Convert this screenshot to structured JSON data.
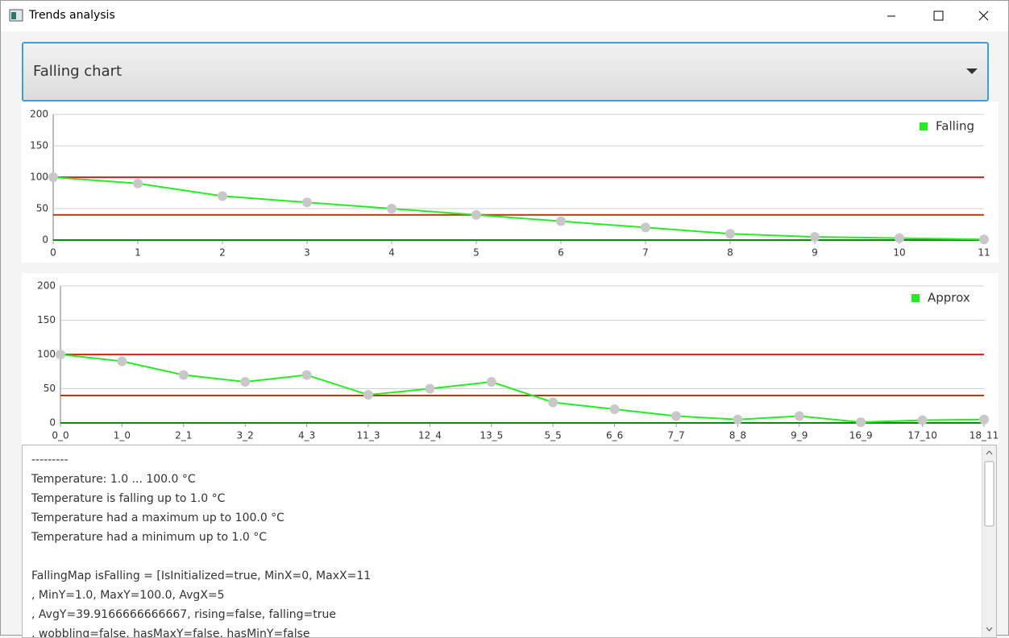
{
  "window": {
    "title": "Trends analysis"
  },
  "dropdown": {
    "selected": "Falling chart"
  },
  "chart_data": [
    {
      "type": "line",
      "x": [
        0,
        1,
        2,
        3,
        4,
        5,
        6,
        7,
        8,
        9,
        10,
        11
      ],
      "series": [
        {
          "name": "Falling",
          "color": "#22ee22",
          "values": [
            100,
            90,
            70,
            60,
            50,
            40,
            30,
            20,
            10,
            5,
            3,
            1
          ]
        }
      ],
      "marker_color": "#c8c8c8",
      "xlim": [
        0,
        11
      ],
      "xticks": [
        0,
        1,
        2,
        3,
        4,
        5,
        6,
        7,
        8,
        9,
        10,
        11
      ],
      "ylim": [
        0,
        200
      ],
      "yticks": [
        0,
        50,
        100,
        150,
        200
      ],
      "grid": true,
      "legend": "top-right",
      "reference_lines": [
        {
          "value": 100,
          "color": "#ff1a1a"
        },
        {
          "value": 40,
          "color": "#b33a0a"
        },
        {
          "value": 0,
          "color": "#0a8a0a"
        }
      ]
    },
    {
      "type": "line",
      "categories": [
        "0_0",
        "1_0",
        "2_1",
        "3_2",
        "4_3",
        "11_3",
        "12_4",
        "13_5",
        "5_5",
        "6_6",
        "7_7",
        "8_8",
        "9_9",
        "16_9",
        "17_10",
        "18_11"
      ],
      "series": [
        {
          "name": "Approx",
          "color": "#22ee22",
          "values": [
            100,
            90,
            70,
            60,
            70,
            41,
            50,
            60,
            30,
            20,
            10,
            5,
            10,
            1,
            4,
            5
          ]
        }
      ],
      "marker_color": "#c8c8c8",
      "ylim": [
        0,
        200
      ],
      "yticks": [
        0,
        50,
        100,
        150,
        200
      ],
      "grid": true,
      "legend": "top-right",
      "reference_lines": [
        {
          "value": 100,
          "color": "#ff1a1a"
        },
        {
          "value": 40,
          "color": "#b33a0a"
        },
        {
          "value": 0,
          "color": "#0a8a0a"
        }
      ]
    }
  ],
  "log": {
    "blocks": [
      [
        "---------",
        "Temperature: 1.0 ... 100.0 °C",
        "Temperature is falling up to 1.0 °C",
        "Temperature had a maximum up to 100.0 °C",
        "Temperature had a minimum up to 1.0 °C"
      ],
      [
        "FallingMap isFalling = [IsInitialized=true, MinX=0, MaxX=11",
        ", MinY=1.0, MaxY=100.0, AvgX=5",
        ", AvgY=39.9166666666667, rising=false, falling=true",
        ", wobbling=false, hasMaxY=false, hasMinY=false"
      ]
    ]
  }
}
